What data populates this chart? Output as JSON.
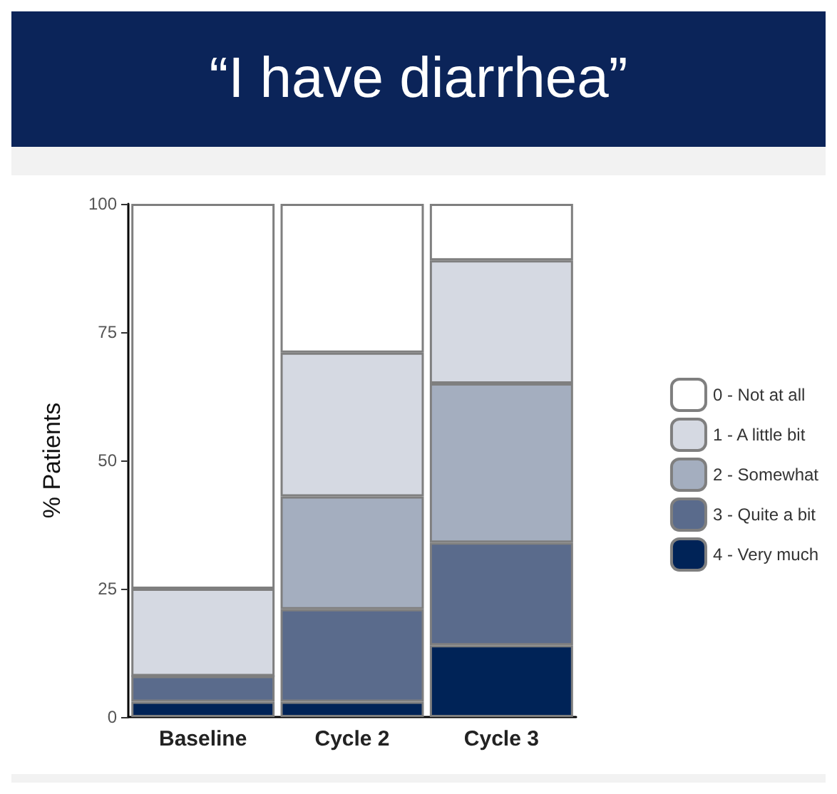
{
  "chart_data": {
    "type": "bar",
    "title": "“I have diarrhea”",
    "ylabel": "% Patients",
    "categories": [
      "Baseline",
      "Cycle 2",
      "Cycle 3"
    ],
    "stacked": true,
    "series": [
      {
        "name": "4 - Very much",
        "color": "#002357",
        "values": [
          3,
          3,
          14
        ]
      },
      {
        "name": "3 - Quite a bit",
        "color": "#5a6b8c",
        "values": [
          5,
          18,
          20
        ]
      },
      {
        "name": "2 - Somewhat",
        "color": "#a4aebf",
        "values": [
          0,
          22,
          31
        ]
      },
      {
        "name": "1 - A little bit",
        "color": "#d5d9e2",
        "values": [
          17,
          28,
          24
        ]
      },
      {
        "name": "0 - Not at all",
        "color": "#ffffff",
        "values": [
          75,
          29,
          11
        ]
      }
    ],
    "ylim": [
      0,
      100
    ],
    "yticks": [
      0,
      25,
      50,
      75,
      100
    ],
    "grid": false,
    "legend": "right"
  }
}
